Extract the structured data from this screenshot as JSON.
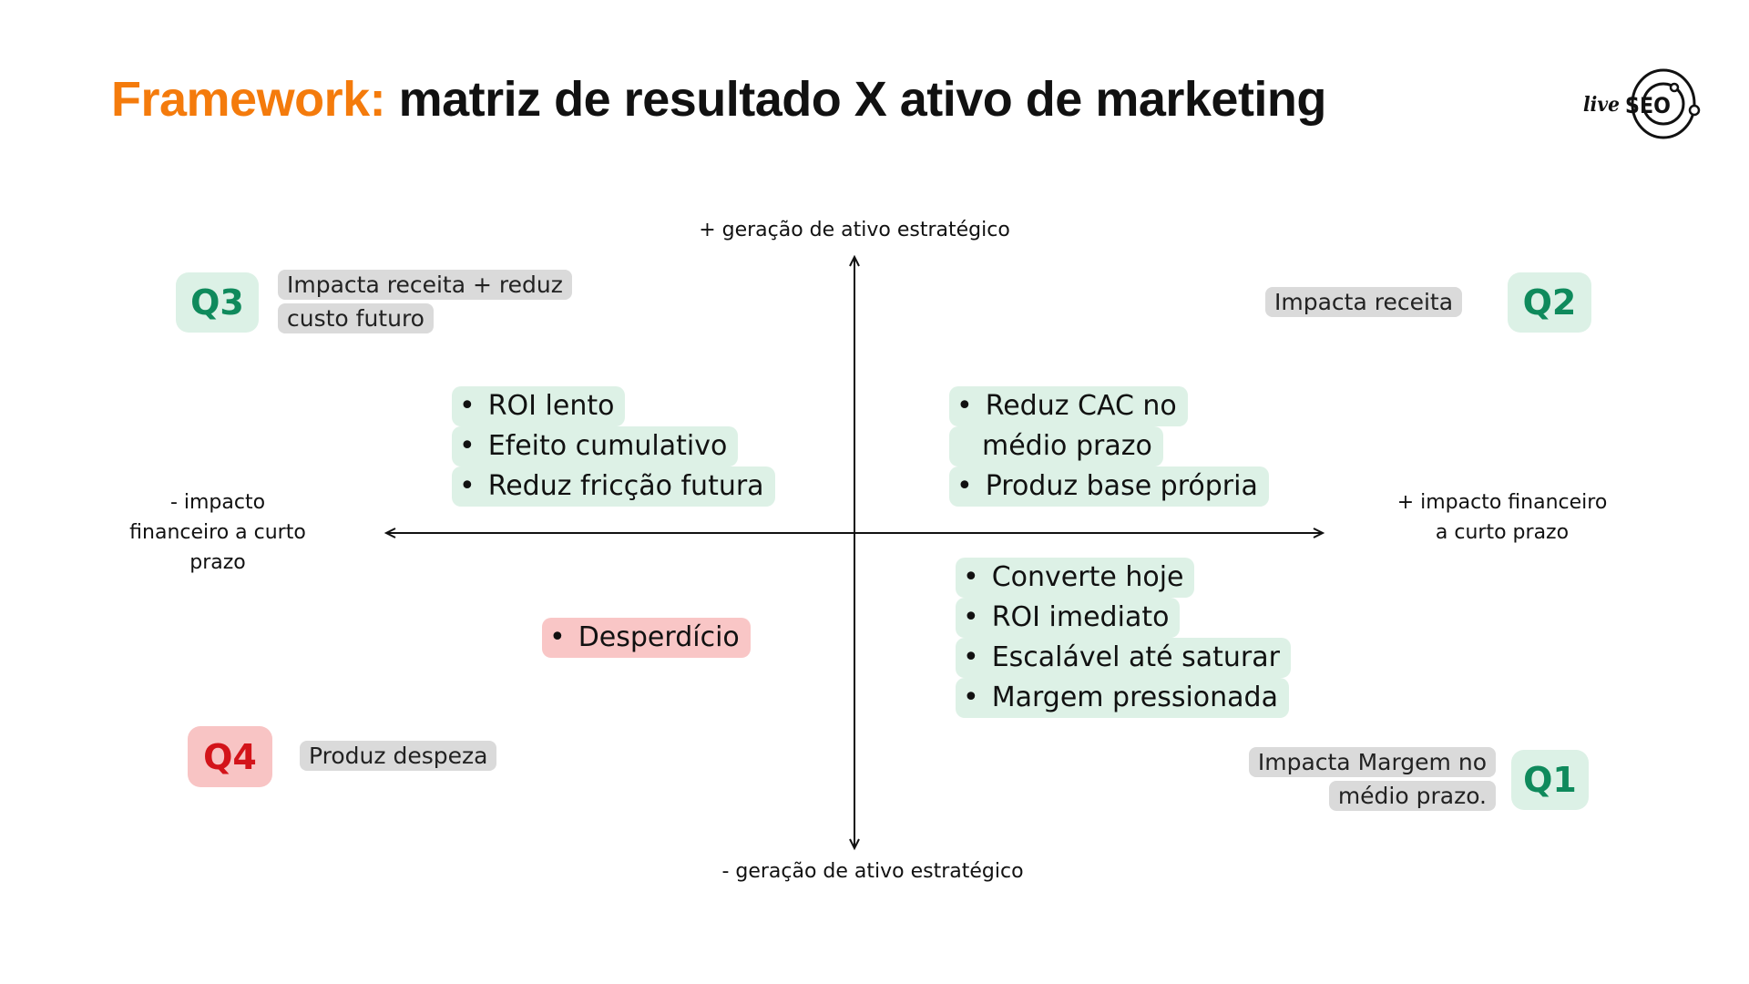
{
  "title": {
    "accent": "Framework:",
    "rest": " matriz de resultado X ativo de marketing"
  },
  "logo": {
    "text": "liveSEO"
  },
  "axes": {
    "top": "+ geração de ativo estratégico",
    "bottom": "- geração de ativo estratégico",
    "left": [
      "- impacto",
      "financeiro a curto",
      "prazo"
    ],
    "right": [
      "+ impacto financeiro",
      "a curto prazo"
    ]
  },
  "colors": {
    "accent": "#f47b0c",
    "green": "#0f8a5c",
    "green_bg": "#ddf1e6",
    "red": "#d3141a",
    "red_bg": "#f9c6c6",
    "note_bg": "#dadada"
  },
  "quadrants": {
    "q3": {
      "label": "Q3",
      "note": [
        "Impacta receita +  reduz",
        "custo futuro"
      ],
      "bullets": [
        "ROI lento",
        "Efeito cumulativo",
        "Reduz fricção futura"
      ]
    },
    "q2": {
      "label": "Q2",
      "note": [
        "Impacta receita"
      ],
      "bullets": [
        "Reduz CAC no",
        "médio prazo",
        "Produz base própria"
      ]
    },
    "q1": {
      "label": "Q1",
      "note": [
        "Impacta Margem no",
        "médio prazo."
      ],
      "bullets": [
        "Converte hoje",
        "ROI imediato",
        "Escalável até saturar",
        "Margem pressionada"
      ]
    },
    "q4": {
      "label": "Q4",
      "note": [
        "Produz despeza"
      ],
      "bullets": [
        "Desperdício"
      ]
    }
  }
}
